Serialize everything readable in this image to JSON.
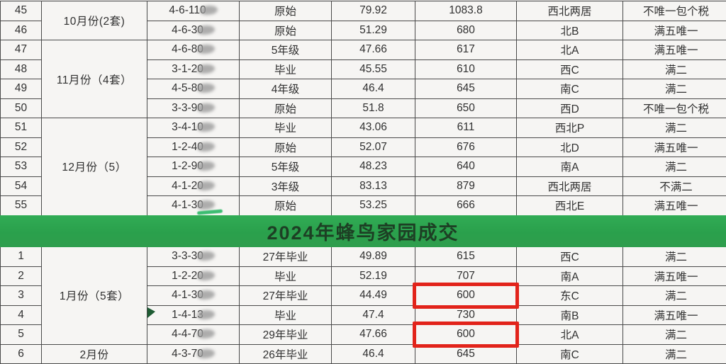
{
  "banner": {
    "title": "2024年蜂鸟家园成交"
  },
  "colors": {
    "banner_green": "#2ca350",
    "highlight_red": "#e2231a",
    "grid_line": "#4a4a4a",
    "smudge_gray": "#9b9b9b",
    "swoosh_green": "#3cbd72",
    "flag_green": "#1e5c33",
    "paper": "#f6f5f3"
  },
  "tables": {
    "top": {
      "month_groups": [
        {
          "label": "10月份(2套)",
          "rows": 2
        },
        {
          "label": "11月份（4套）",
          "rows": 4
        },
        {
          "label": "12月份（5）",
          "rows": 5
        }
      ],
      "rows": [
        {
          "num": "45",
          "address": "4-6-110",
          "grade": "原始",
          "unit_price": "79.92",
          "total": "1083.8",
          "direction": "西北两居",
          "tax": "不唯一包个税"
        },
        {
          "num": "46",
          "address": "4-6-30",
          "grade": "原始",
          "unit_price": "51.29",
          "total": "680",
          "direction": "北B",
          "tax": "满五唯一"
        },
        {
          "num": "47",
          "address": "4-6-80",
          "grade": "5年级",
          "unit_price": "47.66",
          "total": "617",
          "direction": "北A",
          "tax": "满五唯一"
        },
        {
          "num": "48",
          "address": "3-1-20",
          "grade": "毕业",
          "unit_price": "45.55",
          "total": "610",
          "direction": "西C",
          "tax": "满二"
        },
        {
          "num": "49",
          "address": "4-5-80",
          "grade": "4年级",
          "unit_price": "46.4",
          "total": "645",
          "direction": "南C",
          "tax": "满二"
        },
        {
          "num": "50",
          "address": "3-3-90",
          "grade": "原始",
          "unit_price": "51.8",
          "total": "650",
          "direction": "西D",
          "tax": "不唯一包个税"
        },
        {
          "num": "51",
          "address": "3-4-10",
          "grade": "毕业",
          "unit_price": "43.06",
          "total": "611",
          "direction": "西北P",
          "tax": "满二"
        },
        {
          "num": "52",
          "address": "1-2-40",
          "grade": "原始",
          "unit_price": "52.07",
          "total": "676",
          "direction": "北D",
          "tax": "满五唯一"
        },
        {
          "num": "53",
          "address": "1-2-90",
          "grade": "5年级",
          "unit_price": "48.23",
          "total": "640",
          "direction": "南A",
          "tax": "满二"
        },
        {
          "num": "54",
          "address": "4-1-20",
          "grade": "3年级",
          "unit_price": "83.13",
          "total": "879",
          "direction": "西北两居",
          "tax": "不满二"
        },
        {
          "num": "55",
          "address": "4-1-30",
          "grade": "原始",
          "unit_price": "53.25",
          "total": "666",
          "direction": "西北E",
          "tax": "满五唯一",
          "swoosh": true
        }
      ]
    },
    "bottom": {
      "month_groups": [
        {
          "label": "1月份（5套）",
          "rows": 5
        },
        {
          "label": "2月份",
          "rows": 1
        }
      ],
      "rows": [
        {
          "num": "1",
          "address": "3-3-30",
          "grade": "27年毕业",
          "unit_price": "49.89",
          "total": "615",
          "direction": "西C",
          "tax": "满二"
        },
        {
          "num": "2",
          "address": "1-2-20",
          "grade": "毕业",
          "unit_price": "52.19",
          "total": "707",
          "direction": "南A",
          "tax": "满五唯一"
        },
        {
          "num": "3",
          "address": "4-1-30",
          "grade": "27年毕业",
          "unit_price": "44.49",
          "total": "600",
          "direction": "东C",
          "tax": "满二",
          "red_box": true
        },
        {
          "num": "4",
          "address": "1-4-13",
          "grade": "毕业",
          "unit_price": "47.4",
          "total": "730",
          "direction": "南B",
          "tax": "满五唯一",
          "flag": true
        },
        {
          "num": "5",
          "address": "4-4-70",
          "grade": "29年毕业",
          "unit_price": "47.66",
          "total": "600",
          "direction": "北A",
          "tax": "满二",
          "red_box": true
        },
        {
          "num": "6",
          "address": "4-3-70",
          "grade": "26年毕业",
          "unit_price": "46.4",
          "total": "645",
          "direction": "南C",
          "tax": "满二"
        }
      ]
    }
  }
}
